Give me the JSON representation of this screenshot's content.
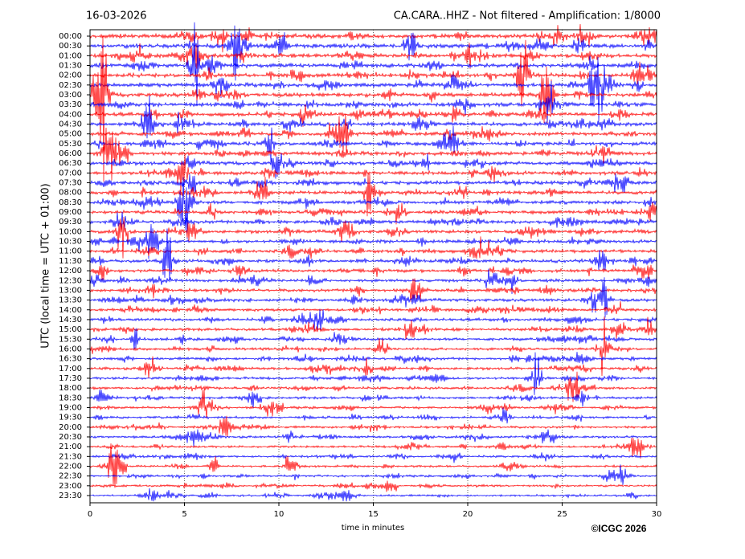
{
  "chart_data": {
    "type": "helicorder",
    "date": "16-03-2026",
    "title": "CA.CARA..HHZ - Not filtered - Amplification: 1/8000",
    "ylabel": "UTC (local time = UTC + 01:00)",
    "xlabel": "time in minutes",
    "copyright": "©ICGC 2026",
    "categories": [
      "00:00",
      "00:30",
      "01:00",
      "01:30",
      "02:00",
      "02:30",
      "03:00",
      "03:30",
      "04:00",
      "04:30",
      "05:00",
      "05:30",
      "06:00",
      "06:30",
      "07:00",
      "07:30",
      "08:00",
      "08:30",
      "09:00",
      "09:30",
      "10:00",
      "10:30",
      "11:00",
      "11:30",
      "12:00",
      "12:30",
      "13:00",
      "13:30",
      "14:00",
      "14:30",
      "15:00",
      "15:30",
      "16:00",
      "16:30",
      "17:00",
      "17:30",
      "18:00",
      "18:30",
      "19:00",
      "19:30",
      "20:00",
      "20:30",
      "21:00",
      "21:30",
      "22:00",
      "22:30",
      "23:00",
      "23:30"
    ],
    "trace_colors": [
      "#ff0000",
      "#0000ff"
    ],
    "xlim": [
      0,
      30
    ],
    "xticks": [
      0,
      5,
      10,
      15,
      20,
      25,
      30
    ],
    "grid": true
  }
}
